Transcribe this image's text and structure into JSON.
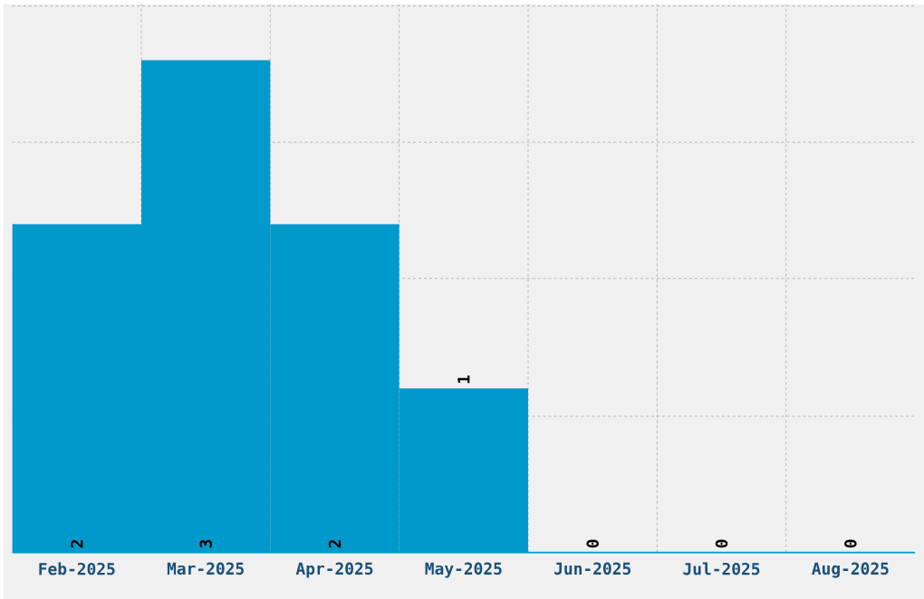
{
  "chart_data": {
    "type": "bar",
    "categories": [
      "Feb-2025",
      "Mar-2025",
      "Apr-2025",
      "May-2025",
      "Jun-2025",
      "Jul-2025",
      "Aug-2025"
    ],
    "values": [
      2,
      3,
      2,
      1,
      0,
      0,
      0
    ],
    "color": "#0099cc",
    "ylim": [
      0,
      3.34
    ],
    "yticks": [
      {
        "value": 0.83,
        "label": null
      },
      {
        "value": 1.67,
        "label": null
      },
      {
        "value": 2.5,
        "label": null
      },
      {
        "value": 3.33,
        "label": null
      }
    ],
    "grid": true,
    "tick_labels": "x",
    "data_labels": true
  }
}
